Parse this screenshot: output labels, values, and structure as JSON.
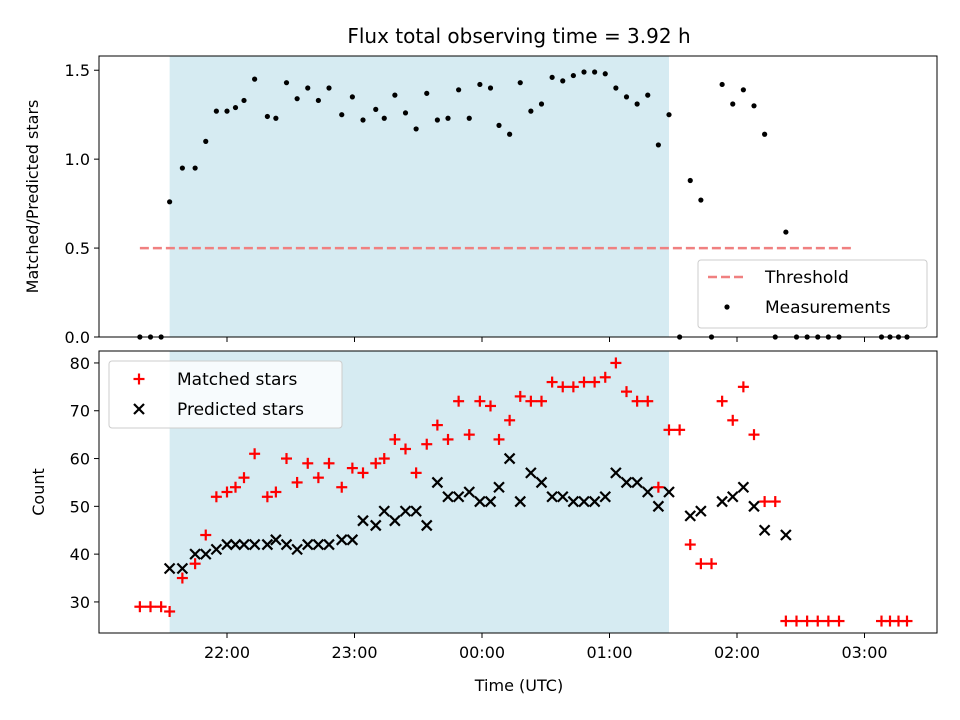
{
  "chart_data": {
    "title": "Flux total observing time = 3.92 h",
    "xlabel": "Time (UTC)",
    "x_ticks": [
      "22:00",
      "23:00",
      "00:00",
      "01:00",
      "02:00",
      "03:00"
    ],
    "highlight_span": {
      "start": "21:33",
      "end": "01:28",
      "color": "#add8e6"
    },
    "panels": [
      {
        "type": "scatter",
        "ylabel": "Matched/Predicted stars",
        "ylim": [
          0,
          1.58
        ],
        "y_ticks": [
          "0.0",
          "0.5",
          "1.0",
          "1.5"
        ],
        "legend_position": "lower-right",
        "threshold": {
          "name": "Threshold",
          "value": 0.5,
          "x_range": [
            "21:19",
            "02:55"
          ],
          "color": "#f08080"
        },
        "series": [
          {
            "name": "Measurements",
            "color": "#000000",
            "marker": "dot",
            "points": [
              [
                "21:19",
                0.0
              ],
              [
                "21:24",
                0.0
              ],
              [
                "21:29",
                0.0
              ],
              [
                "21:33",
                0.76
              ],
              [
                "21:39",
                0.95
              ],
              [
                "21:45",
                0.95
              ],
              [
                "21:50",
                1.1
              ],
              [
                "21:55",
                1.27
              ],
              [
                "22:00",
                1.27
              ],
              [
                "22:04",
                1.29
              ],
              [
                "22:08",
                1.33
              ],
              [
                "22:13",
                1.45
              ],
              [
                "22:19",
                1.24
              ],
              [
                "22:23",
                1.23
              ],
              [
                "22:28",
                1.43
              ],
              [
                "22:33",
                1.34
              ],
              [
                "22:38",
                1.4
              ],
              [
                "22:43",
                1.33
              ],
              [
                "22:48",
                1.4
              ],
              [
                "22:54",
                1.25
              ],
              [
                "22:59",
                1.35
              ],
              [
                "23:04",
                1.22
              ],
              [
                "23:10",
                1.28
              ],
              [
                "23:14",
                1.23
              ],
              [
                "23:19",
                1.36
              ],
              [
                "23:24",
                1.26
              ],
              [
                "23:29",
                1.17
              ],
              [
                "23:34",
                1.37
              ],
              [
                "23:39",
                1.22
              ],
              [
                "23:44",
                1.23
              ],
              [
                "23:49",
                1.39
              ],
              [
                "23:54",
                1.23
              ],
              [
                "23:59",
                1.42
              ],
              [
                "00:04",
                1.4
              ],
              [
                "00:08",
                1.19
              ],
              [
                "00:13",
                1.14
              ],
              [
                "00:18",
                1.43
              ],
              [
                "00:23",
                1.27
              ],
              [
                "00:28",
                1.31
              ],
              [
                "00:33",
                1.46
              ],
              [
                "00:38",
                1.44
              ],
              [
                "00:43",
                1.47
              ],
              [
                "00:48",
                1.49
              ],
              [
                "00:53",
                1.49
              ],
              [
                "00:58",
                1.48
              ],
              [
                "01:03",
                1.4
              ],
              [
                "01:08",
                1.35
              ],
              [
                "01:13",
                1.31
              ],
              [
                "01:18",
                1.36
              ],
              [
                "01:23",
                1.08
              ],
              [
                "01:28",
                1.25
              ],
              [
                "01:33",
                0.0
              ],
              [
                "01:38",
                0.88
              ],
              [
                "01:43",
                0.77
              ],
              [
                "01:48",
                0.0
              ],
              [
                "01:53",
                1.42
              ],
              [
                "01:58",
                1.31
              ],
              [
                "02:03",
                1.39
              ],
              [
                "02:08",
                1.3
              ],
              [
                "02:13",
                1.14
              ],
              [
                "02:18",
                0.0
              ],
              [
                "02:23",
                0.59
              ],
              [
                "02:28",
                0.0
              ],
              [
                "02:33",
                0.0
              ],
              [
                "02:38",
                0.0
              ],
              [
                "02:43",
                0.0
              ],
              [
                "02:48",
                0.0
              ],
              [
                "03:08",
                0.0
              ],
              [
                "03:12",
                0.0
              ],
              [
                "03:16",
                0.0
              ],
              [
                "03:20",
                0.0
              ]
            ]
          }
        ]
      },
      {
        "type": "scatter",
        "ylabel": "Count",
        "ylim": [
          23.5,
          82.5
        ],
        "y_ticks": [
          "30",
          "40",
          "50",
          "60",
          "70",
          "80"
        ],
        "legend_position": "upper-left",
        "series": [
          {
            "name": "Matched stars",
            "color": "#ff0000",
            "marker": "plus",
            "points": [
              [
                "21:19",
                29
              ],
              [
                "21:24",
                29
              ],
              [
                "21:29",
                29
              ],
              [
                "21:33",
                28
              ],
              [
                "21:39",
                35
              ],
              [
                "21:45",
                38
              ],
              [
                "21:50",
                44
              ],
              [
                "21:55",
                52
              ],
              [
                "22:00",
                53
              ],
              [
                "22:04",
                54
              ],
              [
                "22:08",
                56
              ],
              [
                "22:13",
                61
              ],
              [
                "22:19",
                52
              ],
              [
                "22:23",
                53
              ],
              [
                "22:28",
                60
              ],
              [
                "22:33",
                55
              ],
              [
                "22:38",
                59
              ],
              [
                "22:43",
                56
              ],
              [
                "22:48",
                59
              ],
              [
                "22:54",
                54
              ],
              [
                "22:59",
                58
              ],
              [
                "23:04",
                57
              ],
              [
                "23:10",
                59
              ],
              [
                "23:14",
                60
              ],
              [
                "23:19",
                64
              ],
              [
                "23:24",
                62
              ],
              [
                "23:29",
                57
              ],
              [
                "23:34",
                63
              ],
              [
                "23:39",
                67
              ],
              [
                "23:44",
                64
              ],
              [
                "23:49",
                72
              ],
              [
                "23:54",
                65
              ],
              [
                "23:59",
                72
              ],
              [
                "00:04",
                71
              ],
              [
                "00:08",
                64
              ],
              [
                "00:13",
                68
              ],
              [
                "00:18",
                73
              ],
              [
                "00:23",
                72
              ],
              [
                "00:28",
                72
              ],
              [
                "00:33",
                76
              ],
              [
                "00:38",
                75
              ],
              [
                "00:43",
                75
              ],
              [
                "00:48",
                76
              ],
              [
                "00:53",
                76
              ],
              [
                "00:58",
                77
              ],
              [
                "01:03",
                80
              ],
              [
                "01:08",
                74
              ],
              [
                "01:13",
                72
              ],
              [
                "01:18",
                72
              ],
              [
                "01:23",
                54
              ],
              [
                "01:28",
                66
              ],
              [
                "01:33",
                66
              ],
              [
                "01:38",
                42
              ],
              [
                "01:43",
                38
              ],
              [
                "01:48",
                38
              ],
              [
                "01:53",
                72
              ],
              [
                "01:58",
                68
              ],
              [
                "02:03",
                75
              ],
              [
                "02:08",
                65
              ],
              [
                "02:13",
                51
              ],
              [
                "02:18",
                51
              ],
              [
                "02:23",
                26
              ],
              [
                "02:28",
                26
              ],
              [
                "02:33",
                26
              ],
              [
                "02:38",
                26
              ],
              [
                "02:43",
                26
              ],
              [
                "02:48",
                26
              ],
              [
                "03:08",
                26
              ],
              [
                "03:12",
                26
              ],
              [
                "03:16",
                26
              ],
              [
                "03:20",
                26
              ]
            ]
          },
          {
            "name": "Predicted stars",
            "color": "#000000",
            "marker": "x",
            "points": [
              [
                "21:33",
                37
              ],
              [
                "21:39",
                37
              ],
              [
                "21:45",
                40
              ],
              [
                "21:50",
                40
              ],
              [
                "21:55",
                41
              ],
              [
                "22:00",
                42
              ],
              [
                "22:04",
                42
              ],
              [
                "22:08",
                42
              ],
              [
                "22:13",
                42
              ],
              [
                "22:19",
                42
              ],
              [
                "22:23",
                43
              ],
              [
                "22:28",
                42
              ],
              [
                "22:33",
                41
              ],
              [
                "22:38",
                42
              ],
              [
                "22:43",
                42
              ],
              [
                "22:48",
                42
              ],
              [
                "22:54",
                43
              ],
              [
                "22:59",
                43
              ],
              [
                "23:04",
                47
              ],
              [
                "23:10",
                46
              ],
              [
                "23:14",
                49
              ],
              [
                "23:19",
                47
              ],
              [
                "23:24",
                49
              ],
              [
                "23:29",
                49
              ],
              [
                "23:34",
                46
              ],
              [
                "23:39",
                55
              ],
              [
                "23:44",
                52
              ],
              [
                "23:49",
                52
              ],
              [
                "23:54",
                53
              ],
              [
                "23:59",
                51
              ],
              [
                "00:04",
                51
              ],
              [
                "00:08",
                54
              ],
              [
                "00:13",
                60
              ],
              [
                "00:18",
                51
              ],
              [
                "00:23",
                57
              ],
              [
                "00:28",
                55
              ],
              [
                "00:33",
                52
              ],
              [
                "00:38",
                52
              ],
              [
                "00:43",
                51
              ],
              [
                "00:48",
                51
              ],
              [
                "00:53",
                51
              ],
              [
                "00:58",
                52
              ],
              [
                "01:03",
                57
              ],
              [
                "01:08",
                55
              ],
              [
                "01:13",
                55
              ],
              [
                "01:18",
                53
              ],
              [
                "01:23",
                50
              ],
              [
                "01:28",
                53
              ],
              [
                "01:38",
                48
              ],
              [
                "01:43",
                49
              ],
              [
                "01:53",
                51
              ],
              [
                "01:58",
                52
              ],
              [
                "02:03",
                54
              ],
              [
                "02:08",
                50
              ],
              [
                "02:13",
                45
              ],
              [
                "02:23",
                44
              ]
            ]
          }
        ]
      }
    ]
  }
}
